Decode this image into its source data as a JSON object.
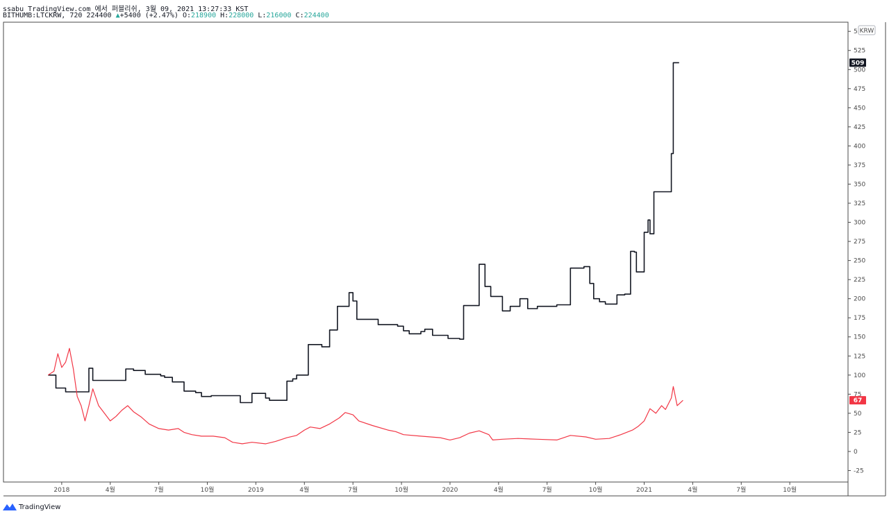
{
  "header": {
    "line1": "ssabu TradingView.com 에서 퍼블리쉬, 3월 09, 2021 13:27:33 KST",
    "symbol": "BITHUMB:LTCKRW, 720",
    "last": "224400",
    "arrow": "▲",
    "change": "+5400 (+2.47%)",
    "o_label": "O:",
    "o": "218900",
    "h_label": "H:",
    "h": "228000",
    "l_label": "L:",
    "l": "216000",
    "c_label": "C:",
    "c": "224400"
  },
  "brand": {
    "name": "TradingView"
  },
  "chart_data": {
    "type": "line",
    "currency_label": "KRW",
    "y_ticks": [
      -25,
      0,
      25,
      50,
      75,
      100,
      125,
      150,
      175,
      200,
      225,
      250,
      275,
      300,
      325,
      350,
      375,
      400,
      425,
      450,
      475,
      500,
      525,
      550
    ],
    "ylim": [
      -40,
      562
    ],
    "x_ticks": [
      {
        "t": 2018.0,
        "label": "2018"
      },
      {
        "t": 2018.25,
        "label": "4월"
      },
      {
        "t": 2018.5,
        "label": "7월"
      },
      {
        "t": 2018.75,
        "label": "10월"
      },
      {
        "t": 2019.0,
        "label": "2019"
      },
      {
        "t": 2019.25,
        "label": "4월"
      },
      {
        "t": 2019.5,
        "label": "7월"
      },
      {
        "t": 2019.75,
        "label": "10월"
      },
      {
        "t": 2020.0,
        "label": "2020"
      },
      {
        "t": 2020.25,
        "label": "4월"
      },
      {
        "t": 2020.5,
        "label": "7월"
      },
      {
        "t": 2020.75,
        "label": "10월"
      },
      {
        "t": 2021.0,
        "label": "2021"
      },
      {
        "t": 2021.25,
        "label": "4월"
      },
      {
        "t": 2021.5,
        "label": "7월"
      },
      {
        "t": 2021.75,
        "label": "10월"
      }
    ],
    "xlim": [
      2017.7,
      2022.05
    ],
    "series": [
      {
        "color": "#131722",
        "step": true,
        "last_label": "509",
        "points": [
          [
            2017.93,
            100
          ],
          [
            2017.97,
            83
          ],
          [
            2018.02,
            78
          ],
          [
            2018.14,
            109
          ],
          [
            2018.16,
            93
          ],
          [
            2018.33,
            108
          ],
          [
            2018.37,
            106
          ],
          [
            2018.43,
            101
          ],
          [
            2018.51,
            99
          ],
          [
            2018.53,
            97
          ],
          [
            2018.57,
            91
          ],
          [
            2018.63,
            79
          ],
          [
            2018.69,
            77
          ],
          [
            2018.72,
            72
          ],
          [
            2018.77,
            73
          ],
          [
            2018.92,
            64
          ],
          [
            2018.98,
            76
          ],
          [
            2019.05,
            70
          ],
          [
            2019.07,
            67
          ],
          [
            2019.15,
            67
          ],
          [
            2019.16,
            92
          ],
          [
            2019.19,
            95
          ],
          [
            2019.21,
            100
          ],
          [
            2019.27,
            140
          ],
          [
            2019.34,
            137
          ],
          [
            2019.38,
            159
          ],
          [
            2019.42,
            190
          ],
          [
            2019.48,
            208
          ],
          [
            2019.5,
            197
          ],
          [
            2019.52,
            173
          ],
          [
            2019.63,
            166
          ],
          [
            2019.73,
            164
          ],
          [
            2019.76,
            158
          ],
          [
            2019.79,
            154
          ],
          [
            2019.85,
            157
          ],
          [
            2019.87,
            160
          ],
          [
            2019.91,
            152
          ],
          [
            2019.99,
            148
          ],
          [
            2020.05,
            147
          ],
          [
            2020.07,
            191
          ],
          [
            2020.15,
            245
          ],
          [
            2020.18,
            216
          ],
          [
            2020.21,
            203
          ],
          [
            2020.27,
            184
          ],
          [
            2020.31,
            190
          ],
          [
            2020.36,
            200
          ],
          [
            2020.4,
            187
          ],
          [
            2020.45,
            190
          ],
          [
            2020.55,
            192
          ],
          [
            2020.62,
            240
          ],
          [
            2020.69,
            242
          ],
          [
            2020.72,
            220
          ],
          [
            2020.74,
            200
          ],
          [
            2020.77,
            196
          ],
          [
            2020.8,
            193
          ],
          [
            2020.86,
            205
          ],
          [
            2020.9,
            206
          ],
          [
            2020.93,
            262
          ],
          [
            2020.95,
            261
          ],
          [
            2020.96,
            235
          ],
          [
            2021.0,
            287
          ],
          [
            2021.02,
            303
          ],
          [
            2021.03,
            285
          ],
          [
            2021.05,
            340
          ],
          [
            2021.14,
            390
          ],
          [
            2021.15,
            509
          ],
          [
            2021.18,
            509
          ]
        ]
      },
      {
        "color": "#f23645",
        "step": false,
        "last_label": "67",
        "points": [
          [
            2017.93,
            100
          ],
          [
            2017.96,
            105
          ],
          [
            2017.98,
            128
          ],
          [
            2018.0,
            110
          ],
          [
            2018.02,
            117
          ],
          [
            2018.04,
            135
          ],
          [
            2018.06,
            108
          ],
          [
            2018.08,
            72
          ],
          [
            2018.1,
            60
          ],
          [
            2018.12,
            40
          ],
          [
            2018.14,
            60
          ],
          [
            2018.16,
            82
          ],
          [
            2018.19,
            60
          ],
          [
            2018.22,
            50
          ],
          [
            2018.25,
            40
          ],
          [
            2018.28,
            46
          ],
          [
            2018.31,
            54
          ],
          [
            2018.34,
            60
          ],
          [
            2018.37,
            52
          ],
          [
            2018.41,
            45
          ],
          [
            2018.45,
            36
          ],
          [
            2018.5,
            30
          ],
          [
            2018.55,
            28
          ],
          [
            2018.6,
            30
          ],
          [
            2018.63,
            25
          ],
          [
            2018.67,
            22
          ],
          [
            2018.72,
            20
          ],
          [
            2018.78,
            20
          ],
          [
            2018.84,
            18
          ],
          [
            2018.88,
            12
          ],
          [
            2018.93,
            10
          ],
          [
            2018.98,
            12
          ],
          [
            2019.05,
            10
          ],
          [
            2019.1,
            13
          ],
          [
            2019.16,
            18
          ],
          [
            2019.21,
            21
          ],
          [
            2019.25,
            28
          ],
          [
            2019.28,
            32
          ],
          [
            2019.33,
            30
          ],
          [
            2019.38,
            36
          ],
          [
            2019.43,
            44
          ],
          [
            2019.46,
            51
          ],
          [
            2019.5,
            48
          ],
          [
            2019.53,
            40
          ],
          [
            2019.6,
            34
          ],
          [
            2019.68,
            28
          ],
          [
            2019.72,
            26
          ],
          [
            2019.76,
            22
          ],
          [
            2019.85,
            20
          ],
          [
            2019.95,
            18
          ],
          [
            2020.0,
            15
          ],
          [
            2020.05,
            18
          ],
          [
            2020.1,
            24
          ],
          [
            2020.15,
            27
          ],
          [
            2020.2,
            22
          ],
          [
            2020.22,
            15
          ],
          [
            2020.27,
            16
          ],
          [
            2020.35,
            17
          ],
          [
            2020.45,
            16
          ],
          [
            2020.55,
            15
          ],
          [
            2020.62,
            21
          ],
          [
            2020.7,
            19
          ],
          [
            2020.75,
            16
          ],
          [
            2020.82,
            17
          ],
          [
            2020.88,
            22
          ],
          [
            2020.94,
            28
          ],
          [
            2020.97,
            33
          ],
          [
            2021.0,
            40
          ],
          [
            2021.03,
            56
          ],
          [
            2021.06,
            50
          ],
          [
            2021.09,
            60
          ],
          [
            2021.11,
            55
          ],
          [
            2021.14,
            70
          ],
          [
            2021.15,
            85
          ],
          [
            2021.17,
            60
          ],
          [
            2021.2,
            67
          ]
        ]
      }
    ]
  }
}
